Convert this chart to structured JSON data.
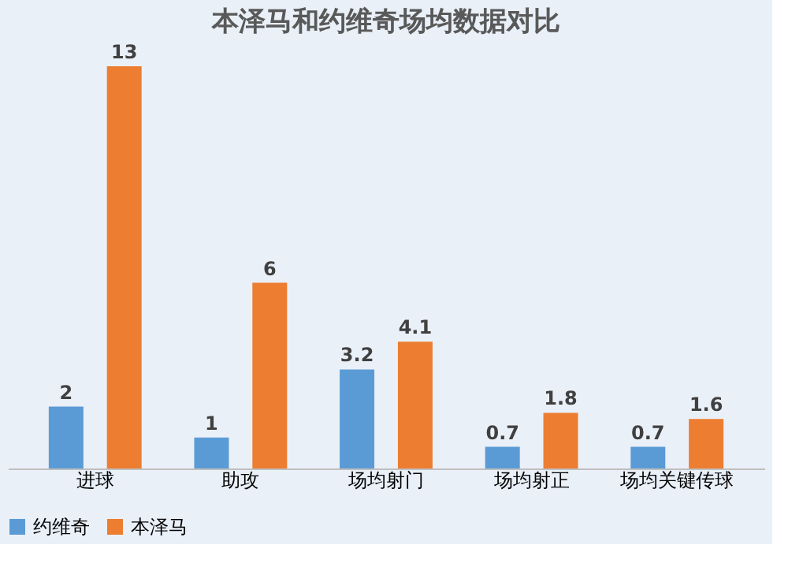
{
  "chart_data": {
    "type": "bar",
    "title": "本泽马和约维奇场均数据对比",
    "categories": [
      "进球",
      "助攻",
      "场均射门",
      "场均射正",
      "场均关键传球"
    ],
    "series": [
      {
        "name": "约维奇",
        "color": "#5b9bd5",
        "values": [
          2,
          1,
          3.2,
          0.7,
          0.7
        ]
      },
      {
        "name": "本泽马",
        "color": "#ed7d31",
        "values": [
          13,
          6,
          4.1,
          1.8,
          1.6
        ]
      }
    ],
    "data_labels": true,
    "legend": "bottom"
  }
}
